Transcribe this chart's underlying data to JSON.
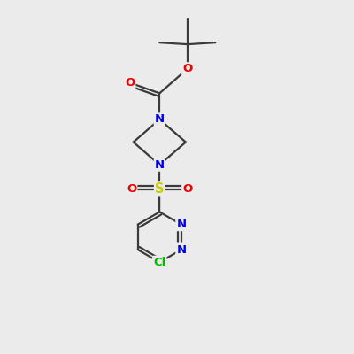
{
  "background_color": "#ebebeb",
  "bond_color": "#3a3a3a",
  "bond_width": 1.6,
  "atom_colors": {
    "N": "#0000EE",
    "O": "#EE0000",
    "S": "#CCCC00",
    "Cl": "#00BB00",
    "C": "#3a3a3a"
  },
  "font_size": 9.5,
  "figsize": [
    4.0,
    4.0
  ],
  "dpi": 100
}
